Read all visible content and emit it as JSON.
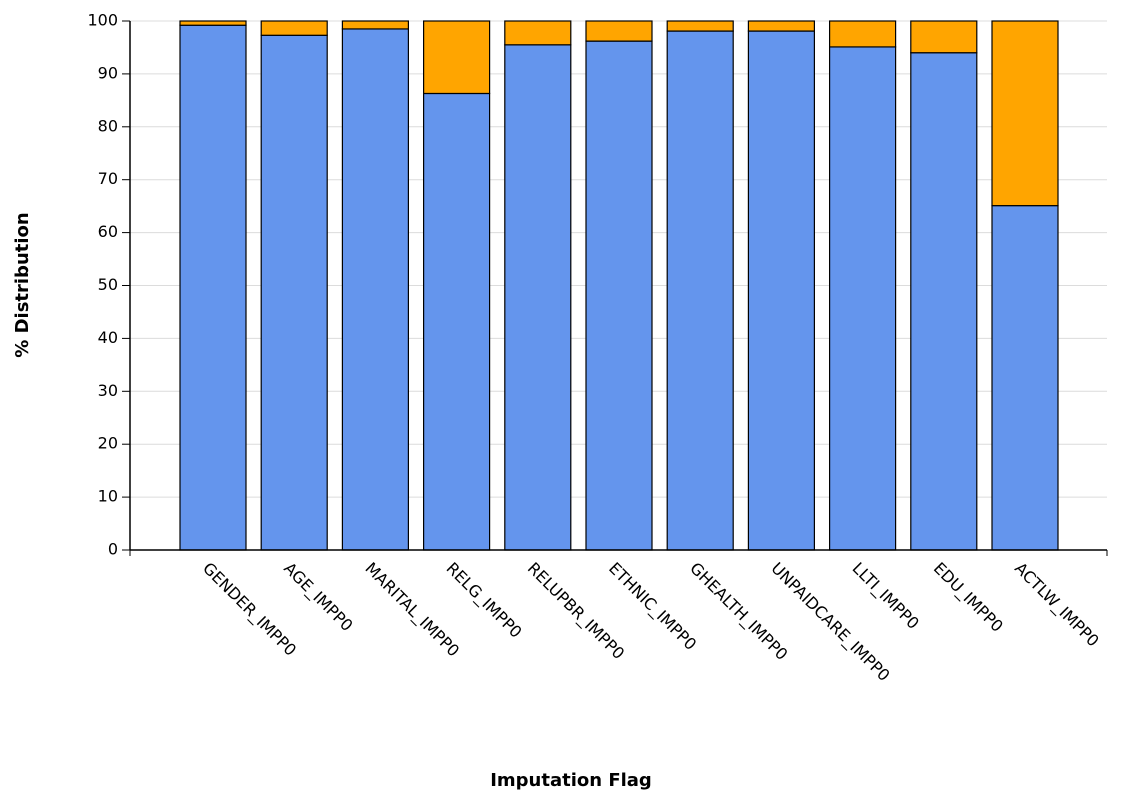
{
  "chart_data": {
    "type": "stacked_bar",
    "x_label": "Imputation Flag",
    "y_label": "% Distribution",
    "categories": [
      "GENDER_IMPP0",
      "AGE_IMPP0",
      "MARITAL_IMPP0",
      "RELG_IMPP0",
      "RELUPBR_IMPP0",
      "ETHNIC_IMPP0",
      "GHEALTH_IMPP0",
      "UNPAIDCARE_IMPP0",
      "LLTI_IMPP0",
      "EDU_IMPP0",
      "ACTLW_IMPP0"
    ],
    "series": [
      {
        "color": "#6495ed",
        "values": [
          99.2,
          97.3,
          98.5,
          86.3,
          95.5,
          96.2,
          98.1,
          98.1,
          95.1,
          94,
          65.1
        ]
      },
      {
        "color": "#ffa500",
        "values": [
          0.8,
          2.7,
          1.5,
          13.7,
          4.5,
          3.8,
          1.9,
          1.9,
          4.9,
          6,
          34.9
        ]
      }
    ],
    "ylim": [
      0,
      100
    ],
    "yticks": [
      0,
      10,
      20,
      30,
      40,
      50,
      60,
      70,
      80,
      90,
      100
    ],
    "grid": true
  }
}
